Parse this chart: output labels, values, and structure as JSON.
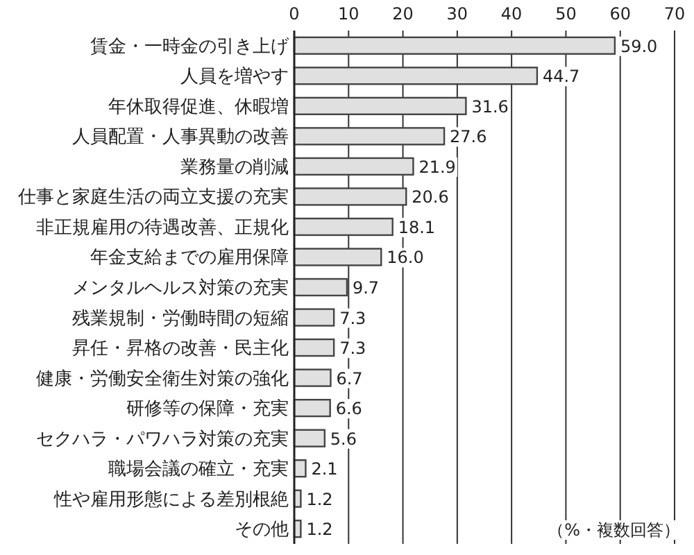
{
  "chart_data": {
    "type": "bar",
    "orientation": "horizontal",
    "categories": [
      "賃金・一時金の引き上げ",
      "人員を増やす",
      "年休取得促進、休暇増",
      "人員配置・人事異動の改善",
      "業務量の削減",
      "仕事と家庭生活の両立支援の充実",
      "非正規雇用の待遇改善、正規化",
      "年金支給までの雇用保障",
      "メンタルヘルス対策の充実",
      "残業規制・労働時間の短縮",
      "昇任・昇格の改善・民主化",
      "健康・労働安全衛生対策の強化",
      "研修等の保障・充実",
      "セクハラ・パワハラ対策の充実",
      "職場会議の確立・充実",
      "性や雇用形態による差別根絶",
      "その他"
    ],
    "values": [
      59.0,
      44.7,
      31.6,
      27.6,
      21.9,
      20.6,
      18.1,
      16.0,
      9.7,
      7.3,
      7.3,
      6.7,
      6.6,
      5.6,
      2.1,
      1.2,
      1.2
    ],
    "color": "#e0e0e0",
    "xlim": [
      0,
      70
    ],
    "xticks": [
      0,
      10,
      20,
      30,
      40,
      50,
      60,
      70
    ],
    "value_labels": [
      "59.0",
      "44.7",
      "31.6",
      "27.6",
      "21.9",
      "20.6",
      "18.1",
      "16.0",
      "9.7",
      "7.3",
      "7.3",
      "6.7",
      "6.6",
      "5.6",
      "2.1",
      "1.2",
      "1.2"
    ],
    "grid": "x",
    "annotations": [
      "（%・複数回答）"
    ]
  }
}
